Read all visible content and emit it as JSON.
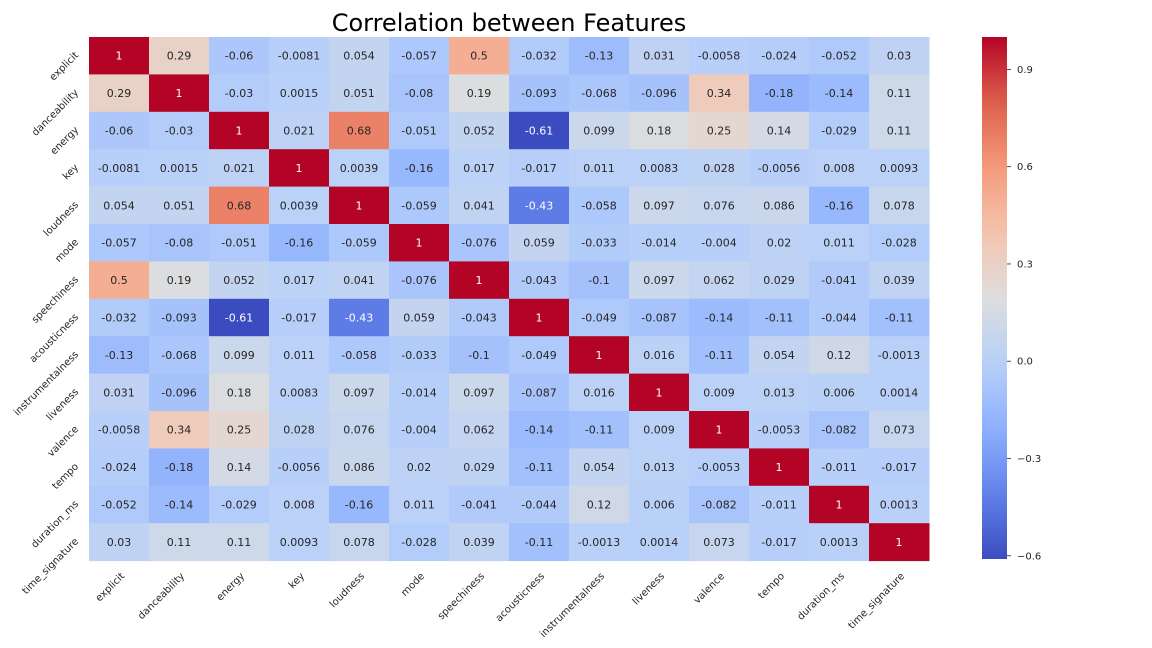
{
  "chart_data": {
    "type": "heatmap",
    "title": "Correlation between Features",
    "xlabel": "",
    "ylabel": "",
    "colormap": "coolwarm",
    "vmin": -0.61,
    "vmax": 1.0,
    "colorbar_ticks": [
      {
        "value": 0.9,
        "label": "0.9"
      },
      {
        "value": 0.6,
        "label": "0.6"
      },
      {
        "value": 0.3,
        "label": "0.3"
      },
      {
        "value": 0.0,
        "label": "0.0"
      },
      {
        "value": -0.3,
        "label": "−0.3"
      },
      {
        "value": -0.6,
        "label": "−0.6"
      }
    ],
    "features": [
      "explicit",
      "danceability",
      "energy",
      "key",
      "loudness",
      "mode",
      "speechiness",
      "acousticness",
      "instrumentalness",
      "liveness",
      "valence",
      "tempo",
      "duration_ms",
      "time_signature"
    ],
    "values": [
      [
        1,
        0.29,
        -0.06,
        -0.0081,
        0.054,
        -0.057,
        0.5,
        -0.032,
        -0.13,
        0.031,
        -0.0058,
        -0.024,
        -0.052,
        0.03
      ],
      [
        0.29,
        1,
        -0.03,
        0.0015,
        0.051,
        -0.08,
        0.19,
        -0.093,
        -0.068,
        -0.096,
        0.34,
        -0.18,
        -0.14,
        0.11
      ],
      [
        -0.06,
        -0.03,
        1,
        0.021,
        0.68,
        -0.051,
        0.052,
        -0.61,
        0.099,
        0.18,
        0.25,
        0.14,
        -0.029,
        0.11
      ],
      [
        -0.0081,
        0.0015,
        0.021,
        1,
        0.0039,
        -0.16,
        0.017,
        -0.017,
        0.011,
        0.0083,
        0.028,
        -0.0056,
        0.008,
        0.0093
      ],
      [
        0.054,
        0.051,
        0.68,
        0.0039,
        1,
        -0.059,
        0.041,
        -0.43,
        -0.058,
        0.097,
        0.076,
        0.086,
        -0.16,
        0.078
      ],
      [
        -0.057,
        -0.08,
        -0.051,
        -0.16,
        -0.059,
        1,
        -0.076,
        0.059,
        -0.033,
        -0.014,
        -0.004,
        0.02,
        0.011,
        -0.028
      ],
      [
        0.5,
        0.19,
        0.052,
        0.017,
        0.041,
        -0.076,
        1,
        -0.043,
        -0.1,
        0.097,
        0.062,
        0.029,
        -0.041,
        0.039
      ],
      [
        -0.032,
        -0.093,
        -0.61,
        -0.017,
        -0.43,
        0.059,
        -0.043,
        1,
        -0.049,
        -0.087,
        -0.14,
        -0.11,
        -0.044,
        -0.11
      ],
      [
        -0.13,
        -0.068,
        0.099,
        0.011,
        -0.058,
        -0.033,
        -0.1,
        -0.049,
        1,
        0.016,
        -0.11,
        0.054,
        0.12,
        -0.0013
      ],
      [
        0.031,
        -0.096,
        0.18,
        0.0083,
        0.097,
        -0.014,
        0.097,
        -0.087,
        0.016,
        1,
        0.009,
        0.013,
        0.006,
        0.0014
      ],
      [
        -0.0058,
        0.34,
        0.25,
        0.028,
        0.076,
        -0.004,
        0.062,
        -0.14,
        -0.11,
        0.009,
        1,
        -0.0053,
        -0.082,
        0.073
      ],
      [
        -0.024,
        -0.18,
        0.14,
        -0.0056,
        0.086,
        0.02,
        0.029,
        -0.11,
        0.054,
        0.013,
        -0.0053,
        1,
        -0.011,
        -0.017
      ],
      [
        -0.052,
        -0.14,
        -0.029,
        0.008,
        -0.16,
        0.011,
        -0.041,
        -0.044,
        0.12,
        0.006,
        -0.082,
        -0.011,
        1,
        0.0013
      ],
      [
        0.03,
        0.11,
        0.11,
        0.0093,
        0.078,
        -0.028,
        0.039,
        -0.11,
        -0.0013,
        0.0014,
        0.073,
        -0.017,
        0.0013,
        1
      ]
    ]
  }
}
